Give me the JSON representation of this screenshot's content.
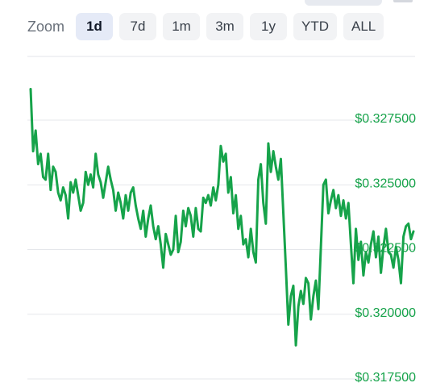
{
  "zoom": {
    "label": "Zoom",
    "buttons": [
      "1d",
      "7d",
      "1m",
      "3m",
      "1y",
      "YTD",
      "ALL"
    ],
    "active": "1d"
  },
  "chart_data": {
    "type": "line",
    "ylim": [
      0.3165,
      0.3285
    ],
    "grid": true,
    "series": [
      {
        "color": "#16a34a",
        "y": [
          0.3287,
          0.3263,
          0.3271,
          0.3258,
          0.3262,
          0.3253,
          0.3252,
          0.3262,
          0.3248,
          0.3257,
          0.3255,
          0.3247,
          0.3244,
          0.3249,
          0.3246,
          0.3237,
          0.3251,
          0.3247,
          0.3252,
          0.3246,
          0.324,
          0.3243,
          0.3255,
          0.325,
          0.3254,
          0.3249,
          0.3262,
          0.3254,
          0.3251,
          0.3245,
          0.3251,
          0.3257,
          0.3252,
          0.3248,
          0.324,
          0.3247,
          0.3243,
          0.3237,
          0.3246,
          0.324,
          0.3247,
          0.3249,
          0.3242,
          0.3237,
          0.3233,
          0.324,
          0.323,
          0.3237,
          0.3242,
          0.3234,
          0.3229,
          0.3234,
          0.3227,
          0.3218,
          0.3231,
          0.3227,
          0.3223,
          0.3225,
          0.3238,
          0.3224,
          0.3228,
          0.324,
          0.3234,
          0.3241,
          0.3238,
          0.323,
          0.3241,
          0.3233,
          0.3232,
          0.3245,
          0.3243,
          0.3246,
          0.3242,
          0.3249,
          0.3244,
          0.325,
          0.3265,
          0.3259,
          0.3262,
          0.3247,
          0.3253,
          0.3239,
          0.3246,
          0.3233,
          0.3238,
          0.3227,
          0.3229,
          0.3222,
          0.3233,
          0.3224,
          0.322,
          0.3252,
          0.3258,
          0.3243,
          0.3235,
          0.3266,
          0.3255,
          0.3263,
          0.3257,
          0.3252,
          0.326,
          0.3239,
          0.3218,
          0.3196,
          0.3207,
          0.3211,
          0.3188,
          0.3203,
          0.3209,
          0.3204,
          0.3214,
          0.3212,
          0.3198,
          0.3207,
          0.3213,
          0.3202,
          0.3226,
          0.325,
          0.3252,
          0.3239,
          0.3244,
          0.3248,
          0.3241,
          0.3246,
          0.3238,
          0.3244,
          0.3237,
          0.3243,
          0.3227,
          0.3212,
          0.3233,
          0.3221,
          0.3228,
          0.3215,
          0.3224,
          0.322,
          0.3227,
          0.3232,
          0.3222,
          0.323,
          0.3216,
          0.3226,
          0.3233,
          0.3224,
          0.3223,
          0.3218,
          0.3226,
          0.3221,
          0.3212,
          0.323,
          0.3234,
          0.3235,
          0.3229,
          0.3232
        ]
      }
    ],
    "ytick_labels": [
      "$0.327500",
      "$0.325000",
      "$0.322500",
      "$0.320000",
      "$0.317500"
    ],
    "ytick_values": [
      0.3275,
      0.325,
      0.3225,
      0.32,
      0.3175
    ]
  }
}
